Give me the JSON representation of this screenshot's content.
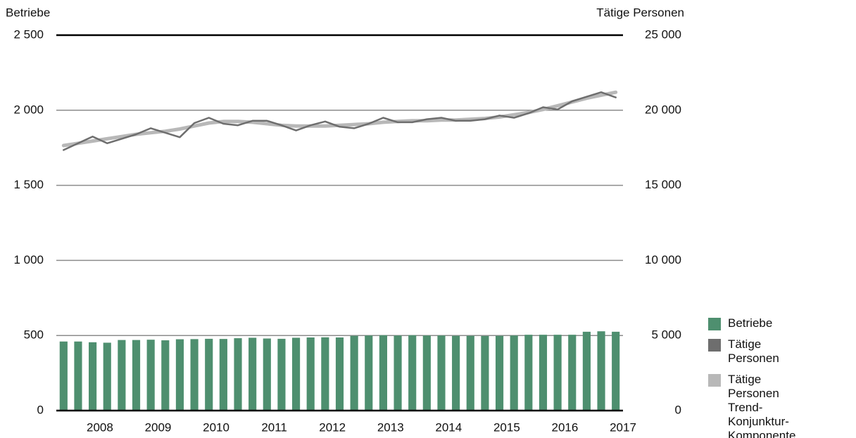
{
  "chart_data": {
    "type": "bar-line",
    "ylabel": "Betriebe",
    "y2label": "Tätige Personen",
    "categories": [
      null,
      null,
      "2008",
      null,
      null,
      null,
      "2009",
      null,
      null,
      null,
      "2010",
      null,
      null,
      null,
      "2011",
      null,
      null,
      null,
      "2012",
      null,
      null,
      null,
      "2013",
      null,
      null,
      null,
      "2014",
      null,
      null,
      null,
      "2015",
      null,
      null,
      null,
      "2016",
      null,
      null,
      null,
      "2017"
    ],
    "series": [
      {
        "name": "Betriebe",
        "type": "bar",
        "axis": "y",
        "color": "#4e8f6f",
        "values": [
          460,
          460,
          455,
          452,
          470,
          470,
          472,
          468,
          475,
          476,
          478,
          477,
          482,
          485,
          480,
          478,
          485,
          487,
          488,
          487,
          498,
          500,
          502,
          500,
          502,
          500,
          500,
          498,
          498,
          497,
          498,
          500,
          505,
          505,
          505,
          505,
          525,
          528,
          525
        ]
      },
      {
        "name": "Tätige Personen",
        "type": "line",
        "axis": "y2",
        "color": "#6e6e6e",
        "values": [
          17350,
          17800,
          18250,
          17800,
          18100,
          18400,
          18800,
          18500,
          18200,
          19150,
          19500,
          19100,
          19000,
          19300,
          19300,
          19000,
          18650,
          19000,
          19250,
          18900,
          18800,
          19100,
          19500,
          19200,
          19200,
          19400,
          19500,
          19300,
          19300,
          19400,
          19650,
          19500,
          19800,
          20200,
          20050,
          20600,
          20900,
          21200,
          20850
        ]
      },
      {
        "name": "Tätige Personen Trend-Konjunktur-Komponente",
        "type": "line",
        "axis": "y2",
        "color": "#b8b8b8",
        "values": [
          17650,
          17800,
          17950,
          18100,
          18250,
          18400,
          18500,
          18600,
          18750,
          18950,
          19150,
          19250,
          19250,
          19200,
          19100,
          19000,
          18950,
          18950,
          18950,
          19000,
          19050,
          19100,
          19200,
          19250,
          19300,
          19300,
          19350,
          19350,
          19400,
          19450,
          19550,
          19700,
          19850,
          20050,
          20300,
          20550,
          20800,
          21000,
          21200
        ]
      }
    ],
    "ylim": [
      0,
      2500
    ],
    "yticks": [
      0,
      500,
      {
        "value": 1000,
        "label": "1 000"
      },
      {
        "value": 1500,
        "label": "1 500"
      },
      {
        "value": 2000,
        "label": "2 000"
      },
      {
        "value": 2500,
        "label": "2 500"
      }
    ],
    "y2lim": [
      0,
      25000
    ],
    "y2ticks": [
      0,
      {
        "value": 5000,
        "label": "5 000"
      },
      {
        "value": 10000,
        "label": "10 000"
      },
      {
        "value": 15000,
        "label": "15 000"
      },
      {
        "value": 20000,
        "label": "20 000"
      },
      {
        "value": 25000,
        "label": "25 000"
      }
    ],
    "grid": true,
    "legend": "lower right"
  }
}
